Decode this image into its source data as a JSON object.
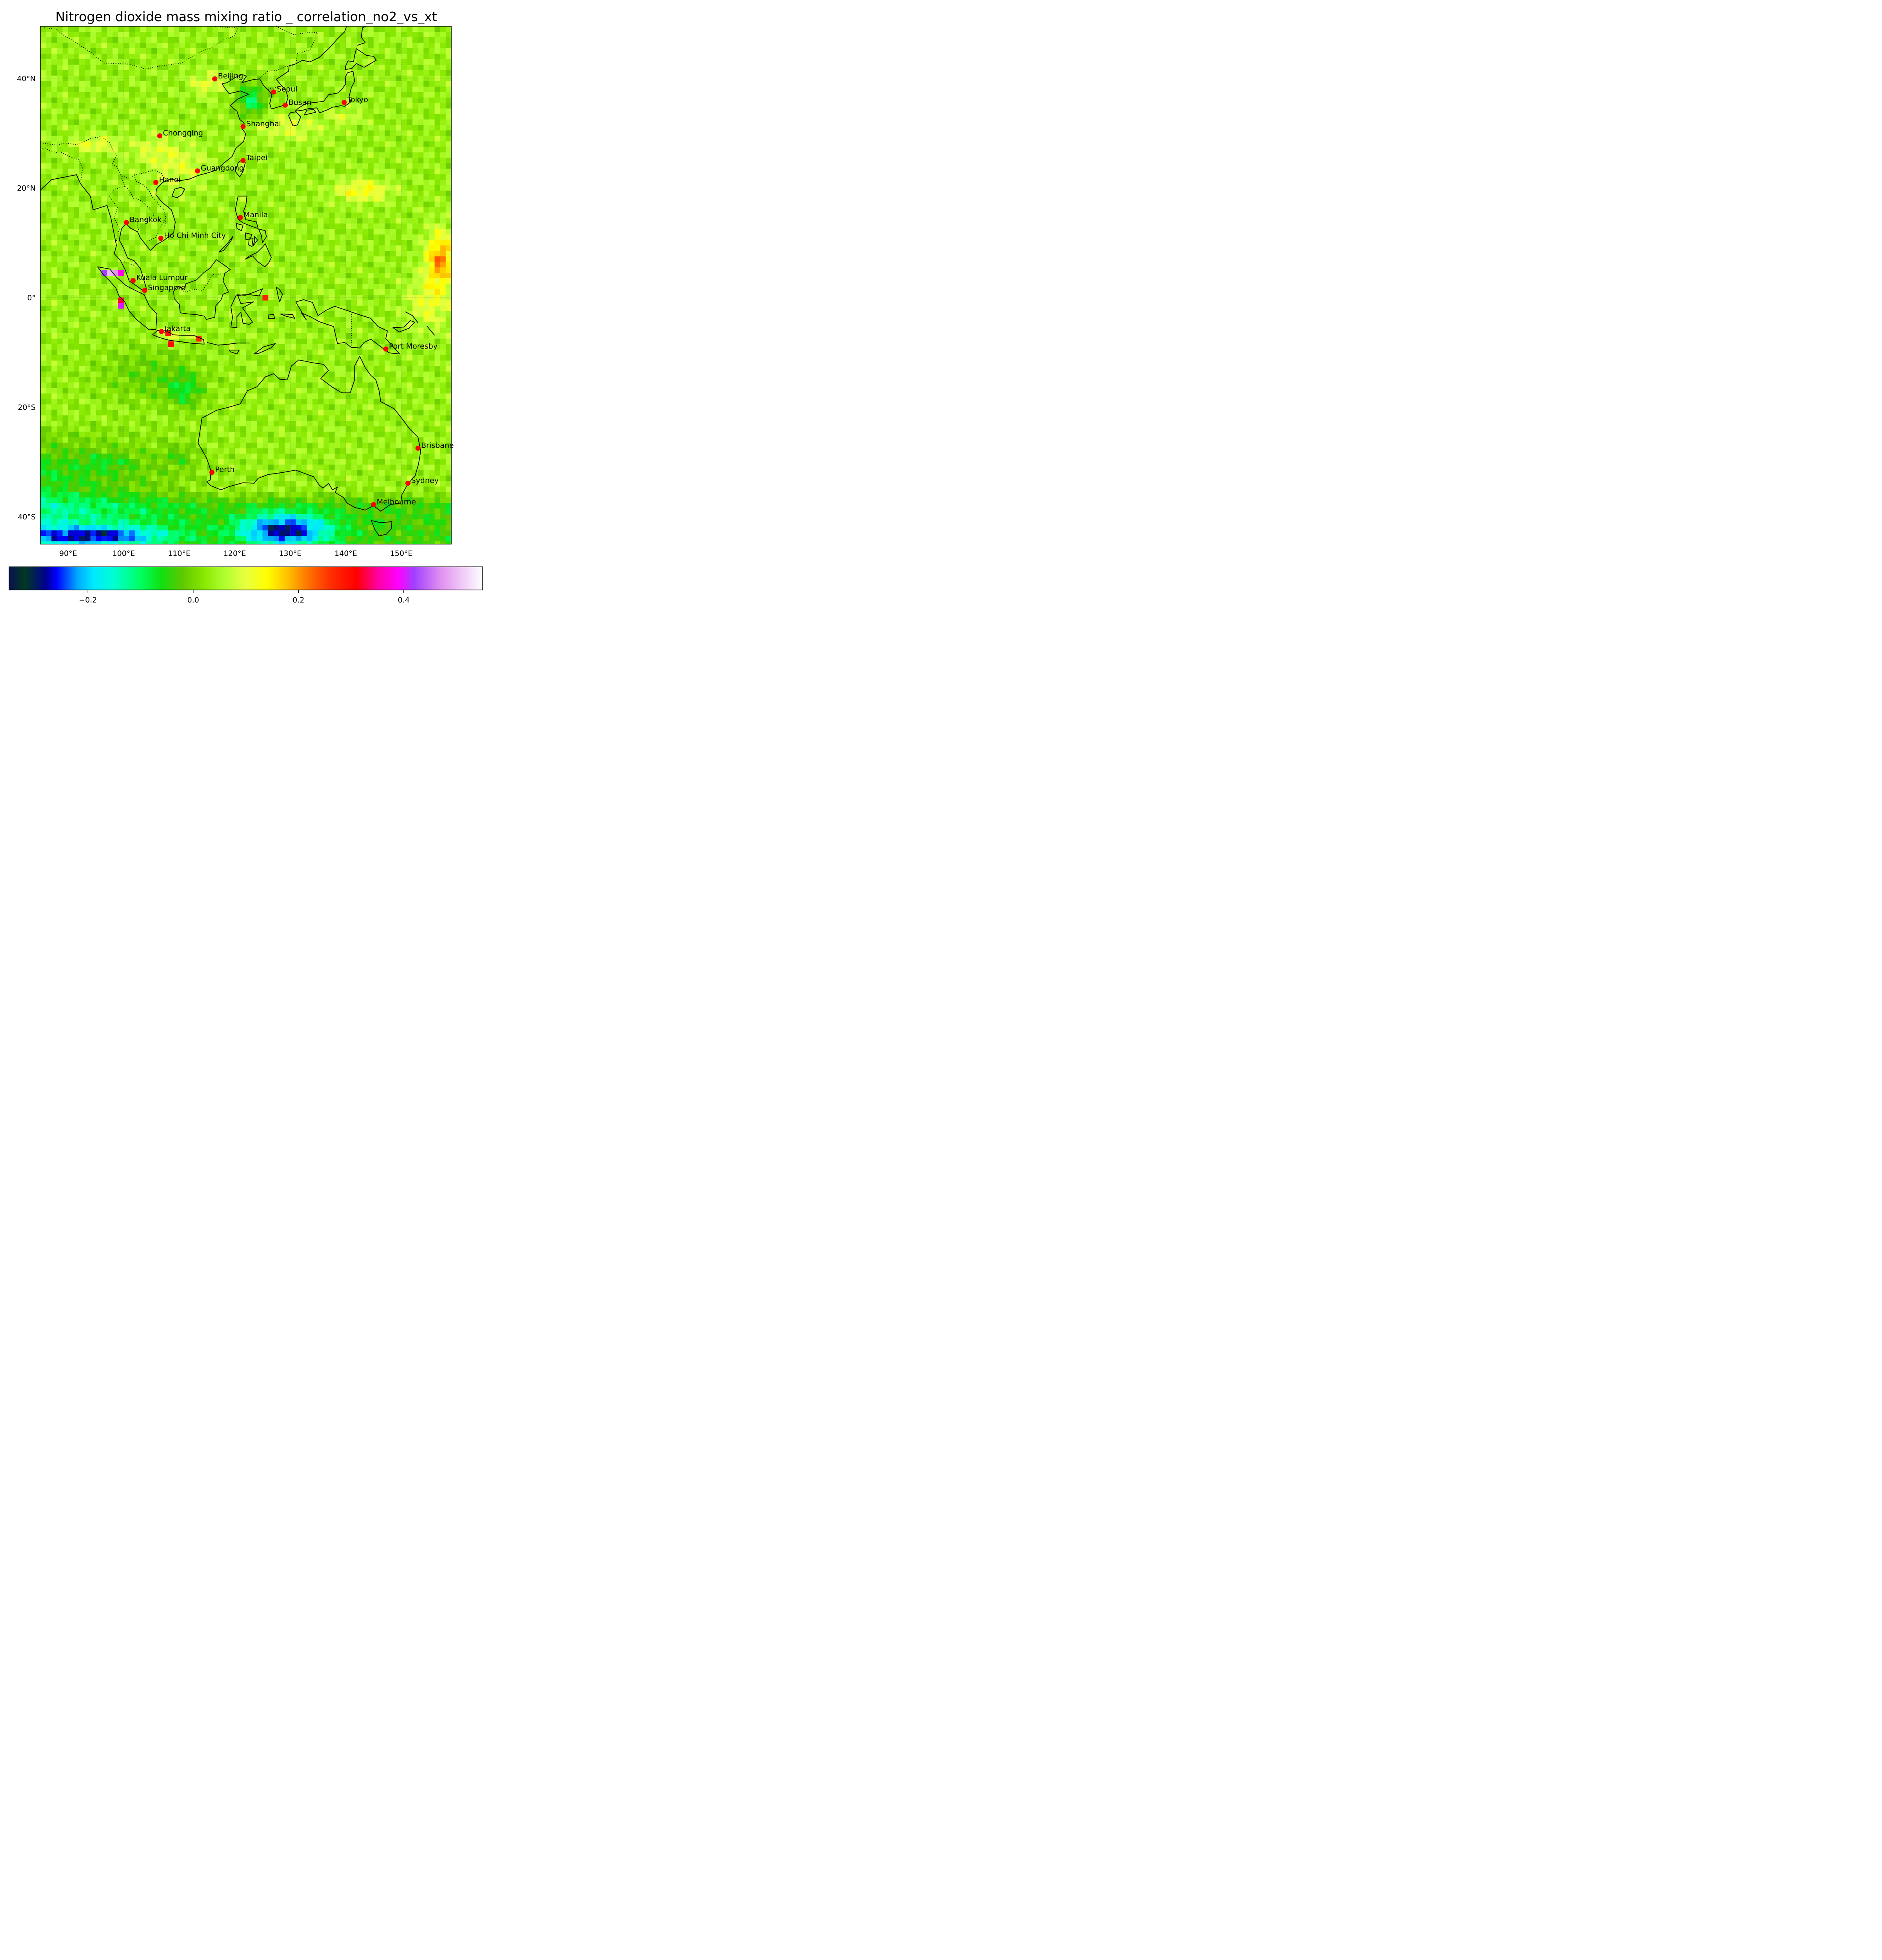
{
  "title": "Nitrogen dioxide mass mixing ratio _ correlation_no2_vs_xt",
  "map": {
    "lon_range": [
      85,
      159
    ],
    "lat_range": [
      -45,
      49.5
    ],
    "lon_ticks": [
      {
        "v": 90,
        "label": "90°E"
      },
      {
        "v": 100,
        "label": "100°E"
      },
      {
        "v": 110,
        "label": "110°E"
      },
      {
        "v": 120,
        "label": "120°E"
      },
      {
        "v": 130,
        "label": "130°E"
      },
      {
        "v": 140,
        "label": "140°E"
      },
      {
        "v": 150,
        "label": "150°E"
      }
    ],
    "lat_ticks": [
      {
        "v": 40,
        "label": "40°N"
      },
      {
        "v": 20,
        "label": "20°N"
      },
      {
        "v": 0,
        "label": "0°"
      },
      {
        "v": -20,
        "label": "20°S"
      },
      {
        "v": -40,
        "label": "40°S"
      }
    ],
    "gridlines": true
  },
  "colorbar": {
    "range": [
      -0.35,
      0.55
    ],
    "ticks": [
      {
        "v": -0.2,
        "label": "−0.2"
      },
      {
        "v": 0.0,
        "label": "0.0"
      },
      {
        "v": 0.2,
        "label": "0.2"
      },
      {
        "v": 0.4,
        "label": "0.4"
      }
    ],
    "stops": [
      [
        -0.35,
        "#0a1050"
      ],
      [
        -0.32,
        "#003a20"
      ],
      [
        -0.28,
        "#000090"
      ],
      [
        -0.26,
        "#0000ff"
      ],
      [
        -0.22,
        "#00a8ff"
      ],
      [
        -0.19,
        "#00e8ff"
      ],
      [
        -0.15,
        "#00ffd0"
      ],
      [
        -0.1,
        "#00ff60"
      ],
      [
        -0.06,
        "#10e010"
      ],
      [
        -0.02,
        "#60c800"
      ],
      [
        0.02,
        "#88e800"
      ],
      [
        0.06,
        "#b0ff30"
      ],
      [
        0.1,
        "#e8ff40"
      ],
      [
        0.14,
        "#ffff00"
      ],
      [
        0.18,
        "#ffc000"
      ],
      [
        0.22,
        "#ff7000"
      ],
      [
        0.26,
        "#ff3000"
      ],
      [
        0.31,
        "#ff0000"
      ],
      [
        0.35,
        "#ff00a0"
      ],
      [
        0.39,
        "#ff00ff"
      ],
      [
        0.42,
        "#a040ff"
      ],
      [
        0.47,
        "#e090f0"
      ],
      [
        0.55,
        "#ffffff"
      ]
    ]
  },
  "cities": [
    {
      "name": "Beijing",
      "lon": 116.4,
      "lat": 39.9
    },
    {
      "name": "Seoul",
      "lon": 127.0,
      "lat": 37.5
    },
    {
      "name": "Busan",
      "lon": 129.1,
      "lat": 35.1
    },
    {
      "name": "Tokyo",
      "lon": 139.7,
      "lat": 35.6
    },
    {
      "name": "Shanghai",
      "lon": 121.5,
      "lat": 31.2
    },
    {
      "name": "Chongqing",
      "lon": 106.5,
      "lat": 29.5
    },
    {
      "name": "Taipei",
      "lon": 121.5,
      "lat": 25.0
    },
    {
      "name": "Guangdong",
      "lon": 113.3,
      "lat": 23.1
    },
    {
      "name": "Hanoi",
      "lon": 105.8,
      "lat": 21.0
    },
    {
      "name": "Manila",
      "lon": 121.0,
      "lat": 14.6
    },
    {
      "name": "Bangkok",
      "lon": 100.5,
      "lat": 13.7
    },
    {
      "name": "Ho Chi Minh City",
      "lon": 106.7,
      "lat": 10.8
    },
    {
      "name": "Kuala Lumpur",
      "lon": 101.7,
      "lat": 3.1
    },
    {
      "name": "Singapore",
      "lon": 103.8,
      "lat": 1.3
    },
    {
      "name": "Jakarta",
      "lon": 106.8,
      "lat": -6.2
    },
    {
      "name": "Port Moresby",
      "lon": 147.2,
      "lat": -9.4
    },
    {
      "name": "Brisbane",
      "lon": 153.0,
      "lat": -27.5
    },
    {
      "name": "Perth",
      "lon": 115.9,
      "lat": -31.9
    },
    {
      "name": "Sydney",
      "lon": 151.2,
      "lat": -33.9
    },
    {
      "name": "Melbourne",
      "lon": 145.0,
      "lat": -37.8
    }
  ]
}
